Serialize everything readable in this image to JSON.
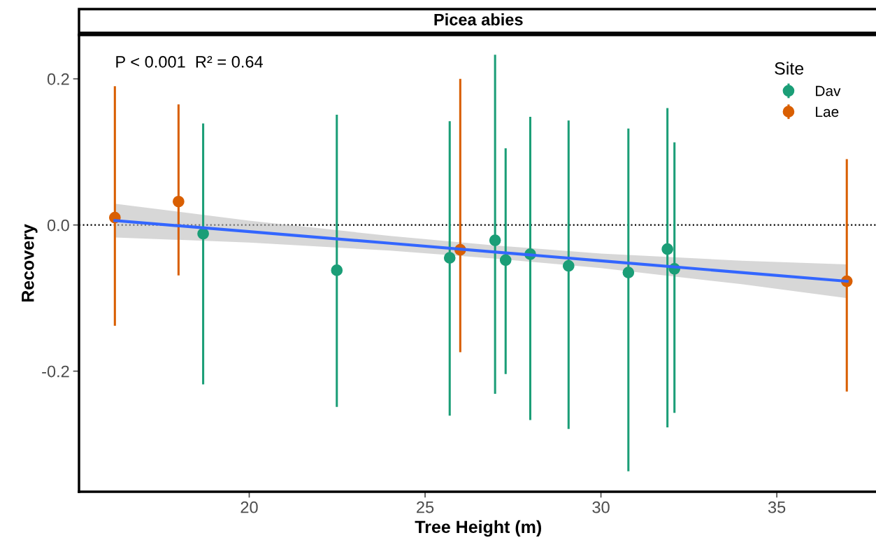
{
  "chart_data": {
    "type": "scatter",
    "title": "Picea abies",
    "xlabel": "Tree Height (m)",
    "ylabel": "Recovery",
    "legend_title": "Site",
    "annotations": [
      "P < 0.001  R² = 0.64"
    ],
    "series": [
      {
        "name": "Dav",
        "color": "#1b9e77",
        "x": [
          18.69,
          22.49,
          25.7,
          26.99,
          27.29,
          27.99,
          29.08,
          30.78,
          31.89,
          32.09
        ],
        "values": [
          -0.012,
          -0.062,
          -0.045,
          -0.021,
          -0.048,
          -0.04,
          -0.056,
          -0.065,
          -0.033,
          -0.06
        ],
        "errors": [
          [
            -0.218,
            0.139
          ],
          [
            -0.249,
            0.151
          ],
          [
            -0.261,
            0.142
          ],
          [
            -0.231,
            0.233
          ],
          [
            -0.204,
            0.105
          ],
          [
            -0.267,
            0.148
          ],
          [
            -0.279,
            0.143
          ],
          [
            -0.337,
            0.132
          ],
          [
            -0.277,
            0.16
          ],
          [
            -0.257,
            0.113
          ]
        ]
      },
      {
        "name": "Lae",
        "color": "#d95f02",
        "x": [
          16.18,
          17.99,
          26.0,
          36.99
        ],
        "values": [
          0.01,
          0.032,
          -0.034,
          -0.077
        ],
        "errors": [
          [
            -0.138,
            0.19
          ],
          [
            -0.069,
            0.165
          ],
          [
            -0.174,
            0.2
          ],
          [
            -0.228,
            0.09
          ]
        ]
      },
      {
        "type": "line",
        "marker": "none",
        "color": "#3366ff",
        "x": [
          16.18,
          20,
          24,
          27,
          30,
          34,
          37
        ],
        "values": [
          0.006,
          -0.009,
          -0.025,
          -0.037,
          -0.049,
          -0.065,
          -0.077
        ],
        "lower": [
          -0.017,
          -0.024,
          -0.035,
          -0.046,
          -0.059,
          -0.081,
          -0.1
        ],
        "upper": [
          0.029,
          0.006,
          -0.015,
          -0.028,
          -0.039,
          -0.049,
          -0.054
        ]
      }
    ],
    "ref_lines": [
      {
        "axis": "y",
        "value": 0,
        "color": "#000000",
        "line_style": "dotted"
      }
    ],
    "xlim": [
      15.16,
      37.87
    ],
    "xticks": [
      20,
      25,
      30,
      35
    ],
    "ylim": [
      -0.365,
      0.26
    ],
    "yticks": [
      {
        "value": -0.2,
        "label": "-0.2"
      },
      {
        "value": 0,
        "label": "0.0"
      },
      {
        "value": 0.2,
        "label": "0.2"
      }
    ],
    "grid": false,
    "legend": "top right",
    "marker": "circle"
  }
}
